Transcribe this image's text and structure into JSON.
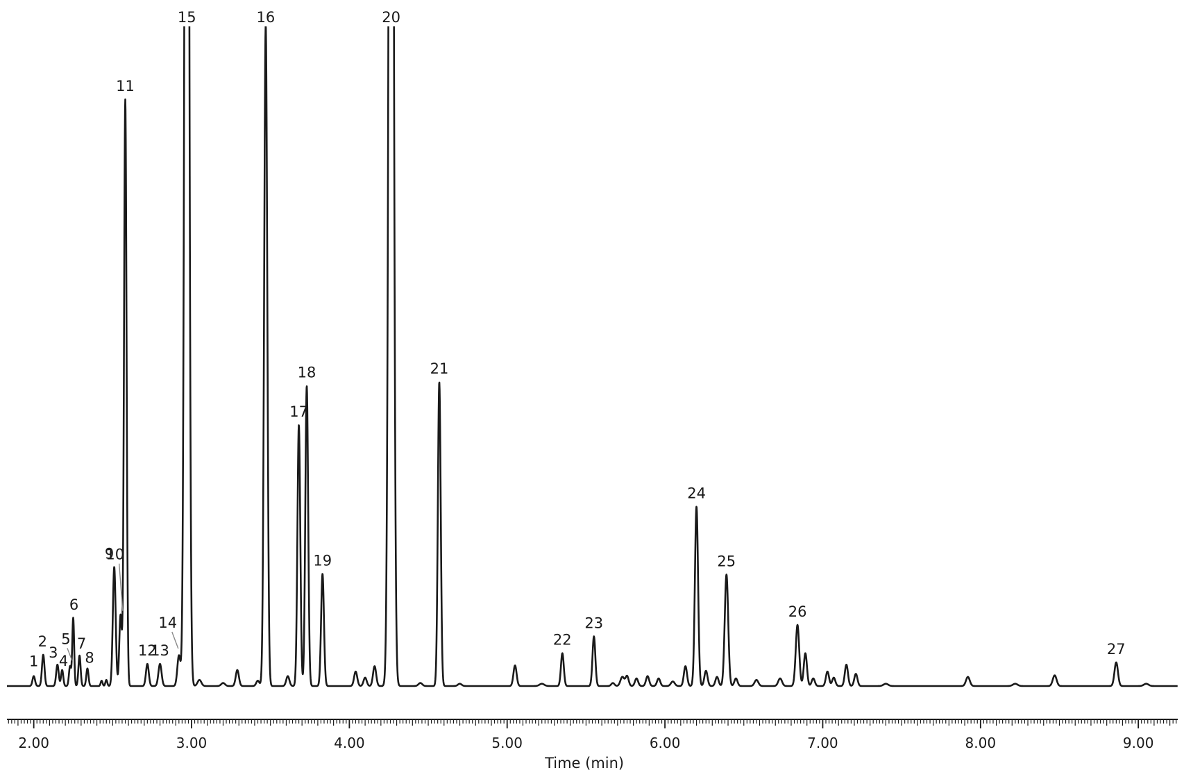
{
  "chart_data": {
    "type": "line",
    "title": "",
    "xlabel": "Time (min)",
    "ylabel": "",
    "xlim": [
      1.83,
      9.25
    ],
    "ylim": [
      0,
      100
    ],
    "grid": false,
    "legend": "none",
    "line_color": "#1a1a1a",
    "x_ticks": [
      2.0,
      3.0,
      4.0,
      5.0,
      6.0,
      7.0,
      8.0,
      9.0
    ],
    "x_tick_labels": [
      "2.00",
      "3.00",
      "4.00",
      "5.00",
      "6.00",
      "7.00",
      "8.00",
      "9.00"
    ],
    "peaks": [
      {
        "label": "1",
        "x": 2.0,
        "y": 1.3,
        "w": 0.008
      },
      {
        "label": "2",
        "x": 2.06,
        "y": 4.1,
        "w": 0.008
      },
      {
        "label": "3",
        "x": 2.15,
        "y": 2.8,
        "w": 0.008
      },
      {
        "label": "4",
        "x": 2.18,
        "y": 2.1,
        "w": 0.007
      },
      {
        "label": "5",
        "x": 2.23,
        "y": 2.6,
        "w": 0.007
      },
      {
        "label": "6",
        "x": 2.25,
        "y": 8.9,
        "w": 0.006
      },
      {
        "label": "7",
        "x": 2.29,
        "y": 4.0,
        "w": 0.007
      },
      {
        "label": "8",
        "x": 2.34,
        "y": 2.3,
        "w": 0.007
      },
      {
        "label": "9",
        "x": 2.51,
        "y": 15.6,
        "w": 0.009
      },
      {
        "label": "10",
        "x": 2.55,
        "y": 9.3,
        "w": 0.008
      },
      {
        "label": "11",
        "x": 2.58,
        "y": 76.8,
        "w": 0.008
      },
      {
        "label": "12",
        "x": 2.72,
        "y": 2.9,
        "w": 0.009
      },
      {
        "label": "13",
        "x": 2.8,
        "y": 2.9,
        "w": 0.01
      },
      {
        "label": "14",
        "x": 2.92,
        "y": 4.0,
        "w": 0.01
      },
      {
        "label": "15",
        "x": 2.97,
        "y": 220,
        "w": 0.012
      },
      {
        "label": "16",
        "x": 3.47,
        "y": 86.6,
        "w": 0.01
      },
      {
        "label": "17",
        "x": 3.68,
        "y": 34.2,
        "w": 0.009
      },
      {
        "label": "18",
        "x": 3.73,
        "y": 39.3,
        "w": 0.009
      },
      {
        "label": "19",
        "x": 3.83,
        "y": 14.7,
        "w": 0.009
      },
      {
        "label": "20",
        "x": 4.265,
        "y": 220,
        "w": 0.013
      },
      {
        "label": "21",
        "x": 4.57,
        "y": 39.8,
        "w": 0.009
      },
      {
        "label": "22",
        "x": 5.35,
        "y": 4.3,
        "w": 0.009
      },
      {
        "label": "23",
        "x": 5.55,
        "y": 6.5,
        "w": 0.009
      },
      {
        "label": "24",
        "x": 6.2,
        "y": 23.5,
        "w": 0.01
      },
      {
        "label": "25",
        "x": 6.39,
        "y": 14.6,
        "w": 0.011
      },
      {
        "label": "26",
        "x": 6.84,
        "y": 8.0,
        "w": 0.011
      },
      {
        "label": "27",
        "x": 8.86,
        "y": 3.1,
        "w": 0.011
      }
    ],
    "minor_peaks": [
      {
        "x": 2.43,
        "y": 0.7,
        "w": 0.006
      },
      {
        "x": 2.46,
        "y": 0.8,
        "w": 0.006
      },
      {
        "x": 3.05,
        "y": 0.8,
        "w": 0.012
      },
      {
        "x": 3.2,
        "y": 0.4,
        "w": 0.012
      },
      {
        "x": 3.29,
        "y": 2.1,
        "w": 0.01
      },
      {
        "x": 3.42,
        "y": 0.7,
        "w": 0.01
      },
      {
        "x": 3.61,
        "y": 1.3,
        "w": 0.01
      },
      {
        "x": 4.04,
        "y": 1.9,
        "w": 0.01
      },
      {
        "x": 4.1,
        "y": 1.1,
        "w": 0.01
      },
      {
        "x": 4.16,
        "y": 2.6,
        "w": 0.01
      },
      {
        "x": 4.45,
        "y": 0.4,
        "w": 0.012
      },
      {
        "x": 4.7,
        "y": 0.3,
        "w": 0.012
      },
      {
        "x": 5.05,
        "y": 2.7,
        "w": 0.01
      },
      {
        "x": 5.22,
        "y": 0.3,
        "w": 0.015
      },
      {
        "x": 5.67,
        "y": 0.4,
        "w": 0.01
      },
      {
        "x": 5.73,
        "y": 1.2,
        "w": 0.012
      },
      {
        "x": 5.76,
        "y": 1.3,
        "w": 0.01
      },
      {
        "x": 5.82,
        "y": 1.0,
        "w": 0.01
      },
      {
        "x": 5.89,
        "y": 1.3,
        "w": 0.01
      },
      {
        "x": 5.96,
        "y": 1.0,
        "w": 0.01
      },
      {
        "x": 6.05,
        "y": 0.6,
        "w": 0.012
      },
      {
        "x": 6.13,
        "y": 2.6,
        "w": 0.01
      },
      {
        "x": 6.26,
        "y": 2.0,
        "w": 0.01
      },
      {
        "x": 6.33,
        "y": 1.2,
        "w": 0.01
      },
      {
        "x": 6.45,
        "y": 1.0,
        "w": 0.01
      },
      {
        "x": 6.58,
        "y": 0.8,
        "w": 0.012
      },
      {
        "x": 6.73,
        "y": 1.0,
        "w": 0.012
      },
      {
        "x": 6.89,
        "y": 4.3,
        "w": 0.01
      },
      {
        "x": 6.94,
        "y": 1.0,
        "w": 0.01
      },
      {
        "x": 7.03,
        "y": 1.9,
        "w": 0.01
      },
      {
        "x": 7.07,
        "y": 1.1,
        "w": 0.01
      },
      {
        "x": 7.15,
        "y": 2.8,
        "w": 0.01
      },
      {
        "x": 7.21,
        "y": 1.6,
        "w": 0.01
      },
      {
        "x": 7.4,
        "y": 0.3,
        "w": 0.015
      },
      {
        "x": 7.92,
        "y": 1.2,
        "w": 0.012
      },
      {
        "x": 8.22,
        "y": 0.3,
        "w": 0.015
      },
      {
        "x": 8.47,
        "y": 1.4,
        "w": 0.012
      },
      {
        "x": 9.05,
        "y": 0.3,
        "w": 0.015
      }
    ]
  }
}
